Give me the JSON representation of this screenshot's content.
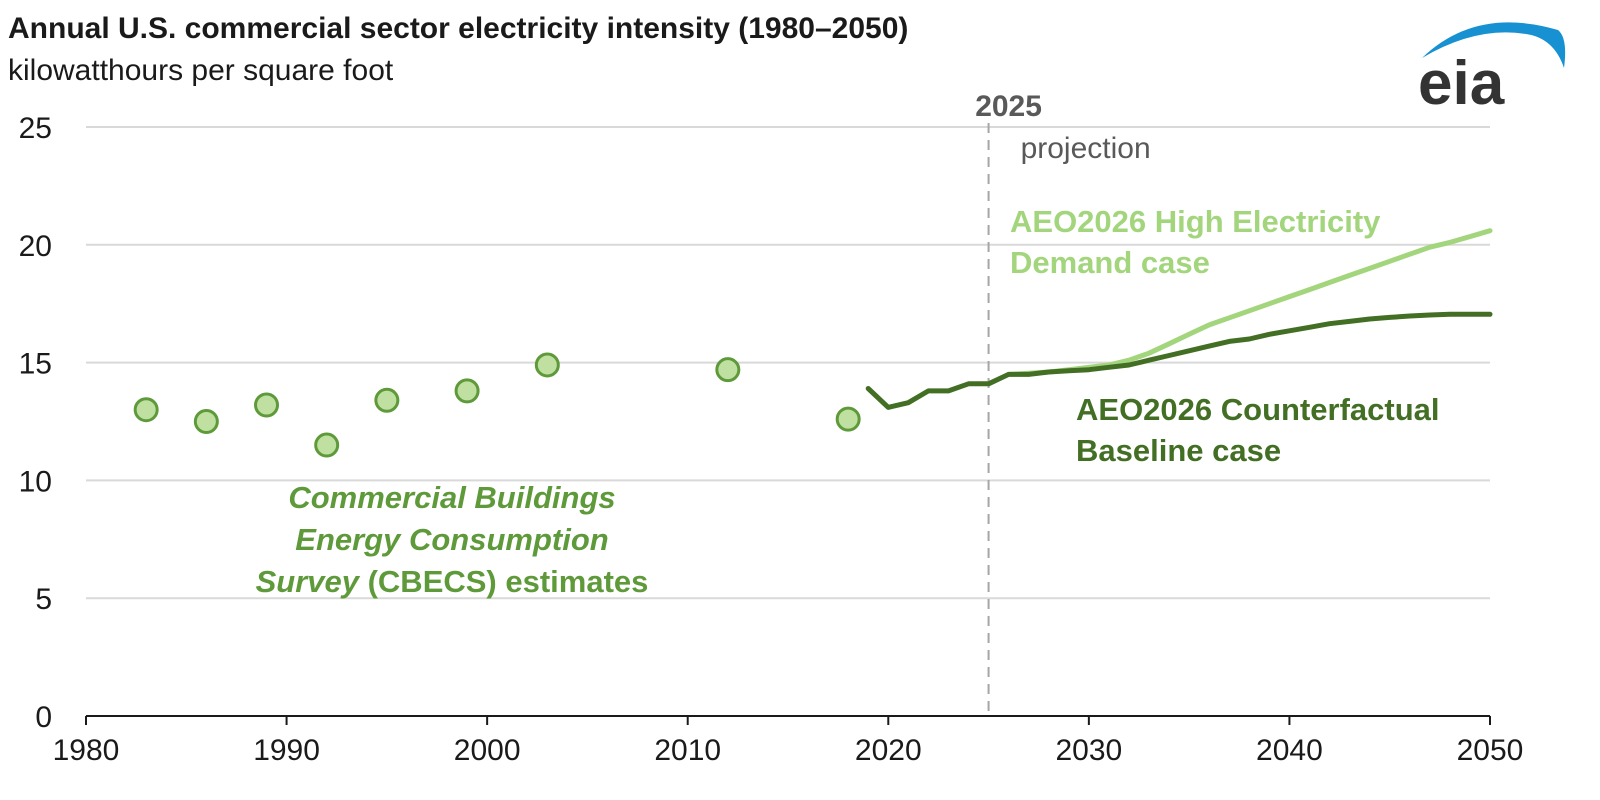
{
  "title": "Annual U.S. commercial sector electricity intensity (1980–2050)",
  "subtitle": "kilowatthours per square foot",
  "logo_text": "eia",
  "colors": {
    "cbecs": "#5e9a3a",
    "cbecs_fill": "#bfe0a0",
    "baseline": "#436f25",
    "high": "#a3d57d",
    "grid": "#d9d9d9",
    "axis": "#1a1a1a",
    "marker": "#7f7f7f",
    "logo_text": "#333333",
    "logo_arc": "#1791d2"
  },
  "chart_data": {
    "type": "line",
    "xlim": [
      1980,
      2050
    ],
    "ylim": [
      0,
      25
    ],
    "x_ticks": [
      "1980",
      "1990",
      "2000",
      "2010",
      "2020",
      "2030",
      "2040",
      "2050"
    ],
    "y_ticks": [
      "0",
      "5",
      "10",
      "15",
      "20",
      "25"
    ],
    "grid": "horizontal",
    "projection_marker": {
      "year": 2025,
      "label": "2025",
      "note": "projection"
    },
    "series": [
      {
        "name": "Commercial Buildings Energy Consumption Survey (CBECS) estimates",
        "kind": "scatter",
        "x": [
          1983,
          1986,
          1989,
          1992,
          1995,
          1999,
          2003,
          2012,
          2018
        ],
        "y": [
          13.0,
          12.5,
          13.2,
          11.5,
          13.4,
          13.8,
          14.9,
          14.7,
          12.6
        ]
      },
      {
        "name": "AEO2026 Counterfactual Baseline case",
        "kind": "line",
        "x": [
          2019,
          2020,
          2021,
          2022,
          2023,
          2024,
          2025,
          2026,
          2027,
          2028,
          2029,
          2030,
          2031,
          2032,
          2033,
          2034,
          2035,
          2036,
          2037,
          2038,
          2039,
          2040,
          2041,
          2042,
          2043,
          2044,
          2045,
          2046,
          2047,
          2048,
          2049,
          2050
        ],
        "y": [
          13.9,
          13.1,
          13.3,
          13.8,
          13.8,
          14.1,
          14.1,
          14.5,
          14.5,
          14.6,
          14.65,
          14.7,
          14.8,
          14.9,
          15.1,
          15.3,
          15.5,
          15.7,
          15.9,
          16.0,
          16.2,
          16.35,
          16.5,
          16.65,
          16.75,
          16.85,
          16.92,
          16.98,
          17.02,
          17.05,
          17.05,
          17.05
        ]
      },
      {
        "name": "AEO2026 High Electricity Demand case",
        "kind": "line",
        "x": [
          2026,
          2027,
          2028,
          2029,
          2030,
          2031,
          2032,
          2033,
          2034,
          2035,
          2036,
          2037,
          2038,
          2039,
          2040,
          2041,
          2042,
          2043,
          2044,
          2045,
          2046,
          2047,
          2048,
          2049,
          2050
        ],
        "y": [
          14.5,
          14.55,
          14.6,
          14.7,
          14.8,
          14.9,
          15.1,
          15.4,
          15.8,
          16.2,
          16.6,
          16.9,
          17.2,
          17.5,
          17.8,
          18.1,
          18.4,
          18.7,
          19.0,
          19.3,
          19.6,
          19.9,
          20.1,
          20.35,
          20.6
        ]
      }
    ],
    "labels": {
      "cbecs_line1": "Commercial Buildings",
      "cbecs_line2": "Energy Consumption",
      "cbecs_line3_italic": "Survey",
      "cbecs_line3_rest": " (CBECS) estimates",
      "high_line1": "AEO2026 High Electricity",
      "high_line2": "Demand case",
      "baseline_line1": "AEO2026 Counterfactual",
      "baseline_line2": "Baseline case"
    }
  }
}
